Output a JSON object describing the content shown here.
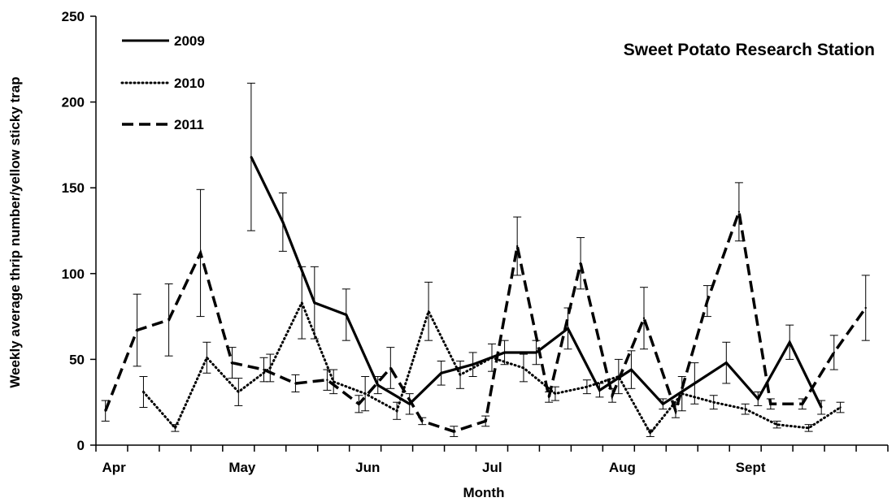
{
  "chart_data": {
    "type": "line",
    "title": "Sweet Potato Research Station",
    "xlabel": "Month",
    "ylabel": "Weekly average thrip number/yellow sticky trap",
    "ylim": [
      0,
      250
    ],
    "yticks": [
      0,
      50,
      100,
      150,
      200,
      250
    ],
    "month_labels": [
      "Apr",
      "May",
      "Jun",
      "Jul",
      "Aug",
      "Sept"
    ],
    "month_label_weeks": [
      1,
      5,
      9,
      13,
      17,
      21
    ],
    "xlim": [
      0.5,
      25.5
    ],
    "grid": false,
    "legend_position": "top-left",
    "series": [
      {
        "name": "2009",
        "line_style": "solid",
        "points": [
          {
            "week": 5.4,
            "y": 168,
            "err": 43
          },
          {
            "week": 6.4,
            "y": 130,
            "err": 17
          },
          {
            "week": 7.4,
            "y": 83,
            "err": 21
          },
          {
            "week": 8.4,
            "y": 76,
            "err": 15
          },
          {
            "week": 9.4,
            "y": 35,
            "err": 5
          },
          {
            "week": 10.4,
            "y": 24,
            "err": 6
          },
          {
            "week": 11.4,
            "y": 42,
            "err": 7
          },
          {
            "week": 12.4,
            "y": 47,
            "err": 7
          },
          {
            "week": 13.4,
            "y": 54,
            "err": 7
          },
          {
            "week": 14.4,
            "y": 54,
            "err": 7
          },
          {
            "week": 15.4,
            "y": 68,
            "err": 12
          },
          {
            "week": 16.4,
            "y": 32,
            "err": 4
          },
          {
            "week": 17.4,
            "y": 44,
            "err": 11
          },
          {
            "week": 18.4,
            "y": 24,
            "err": 3
          },
          {
            "week": 19.4,
            "y": 36,
            "err": 12
          },
          {
            "week": 20.4,
            "y": 48,
            "err": 12
          },
          {
            "week": 21.4,
            "y": 27,
            "err": 4
          },
          {
            "week": 22.4,
            "y": 60,
            "err": 10
          },
          {
            "week": 23.4,
            "y": 22,
            "err": 4
          }
        ]
      },
      {
        "name": "2010",
        "line_style": "dotted",
        "points": [
          {
            "week": 2.0,
            "y": 31,
            "err": 9
          },
          {
            "week": 3.0,
            "y": 10,
            "err": 2
          },
          {
            "week": 4.0,
            "y": 51,
            "err": 9
          },
          {
            "week": 5.0,
            "y": 31,
            "err": 8
          },
          {
            "week": 6.0,
            "y": 45,
            "err": 8
          },
          {
            "week": 7.0,
            "y": 83,
            "err": 21
          },
          {
            "week": 8.0,
            "y": 37,
            "err": 7
          },
          {
            "week": 9.0,
            "y": 30,
            "err": 10
          },
          {
            "week": 10.0,
            "y": 20,
            "err": 5
          },
          {
            "week": 11.0,
            "y": 78,
            "err": 17
          },
          {
            "week": 12.0,
            "y": 41,
            "err": 8
          },
          {
            "week": 13.0,
            "y": 51,
            "err": 8
          },
          {
            "week": 14.0,
            "y": 45,
            "err": 8
          },
          {
            "week": 15.0,
            "y": 30,
            "err": 4
          },
          {
            "week": 16.0,
            "y": 34,
            "err": 4
          },
          {
            "week": 17.0,
            "y": 40,
            "err": 10
          },
          {
            "week": 18.0,
            "y": 7,
            "err": 2
          },
          {
            "week": 19.0,
            "y": 30,
            "err": 10
          },
          {
            "week": 20.0,
            "y": 25,
            "err": 4
          },
          {
            "week": 21.0,
            "y": 21,
            "err": 3
          },
          {
            "week": 22.0,
            "y": 12,
            "err": 2
          },
          {
            "week": 23.0,
            "y": 10,
            "err": 2
          },
          {
            "week": 24.0,
            "y": 22,
            "err": 3
          }
        ]
      },
      {
        "name": "2011",
        "line_style": "dashed",
        "points": [
          {
            "week": 0.8,
            "y": 20,
            "err": 6
          },
          {
            "week": 1.8,
            "y": 67,
            "err": 21
          },
          {
            "week": 2.8,
            "y": 73,
            "err": 21
          },
          {
            "week": 3.8,
            "y": 112,
            "err": 37
          },
          {
            "week": 4.8,
            "y": 48,
            "err": 9
          },
          {
            "week": 5.8,
            "y": 44,
            "err": 7
          },
          {
            "week": 6.8,
            "y": 36,
            "err": 5
          },
          {
            "week": 7.8,
            "y": 38,
            "err": 6
          },
          {
            "week": 8.8,
            "y": 24,
            "err": 5
          },
          {
            "week": 9.8,
            "y": 45,
            "err": 12
          },
          {
            "week": 10.8,
            "y": 14,
            "err": 2
          },
          {
            "week": 11.8,
            "y": 8,
            "err": 3
          },
          {
            "week": 12.8,
            "y": 14,
            "err": 3
          },
          {
            "week": 13.8,
            "y": 116,
            "err": 17
          },
          {
            "week": 14.8,
            "y": 28,
            "err": 3
          },
          {
            "week": 15.8,
            "y": 106,
            "err": 15
          },
          {
            "week": 16.8,
            "y": 29,
            "err": 4
          },
          {
            "week": 17.8,
            "y": 74,
            "err": 18
          },
          {
            "week": 18.8,
            "y": 20,
            "err": 4
          },
          {
            "week": 19.8,
            "y": 84,
            "err": 9
          },
          {
            "week": 20.8,
            "y": 136,
            "err": 17
          },
          {
            "week": 21.8,
            "y": 24,
            "err": 3
          },
          {
            "week": 22.8,
            "y": 24,
            "err": 3
          },
          {
            "week": 23.8,
            "y": 54,
            "err": 10
          },
          {
            "week": 24.8,
            "y": 80,
            "err": 19
          }
        ]
      }
    ]
  }
}
